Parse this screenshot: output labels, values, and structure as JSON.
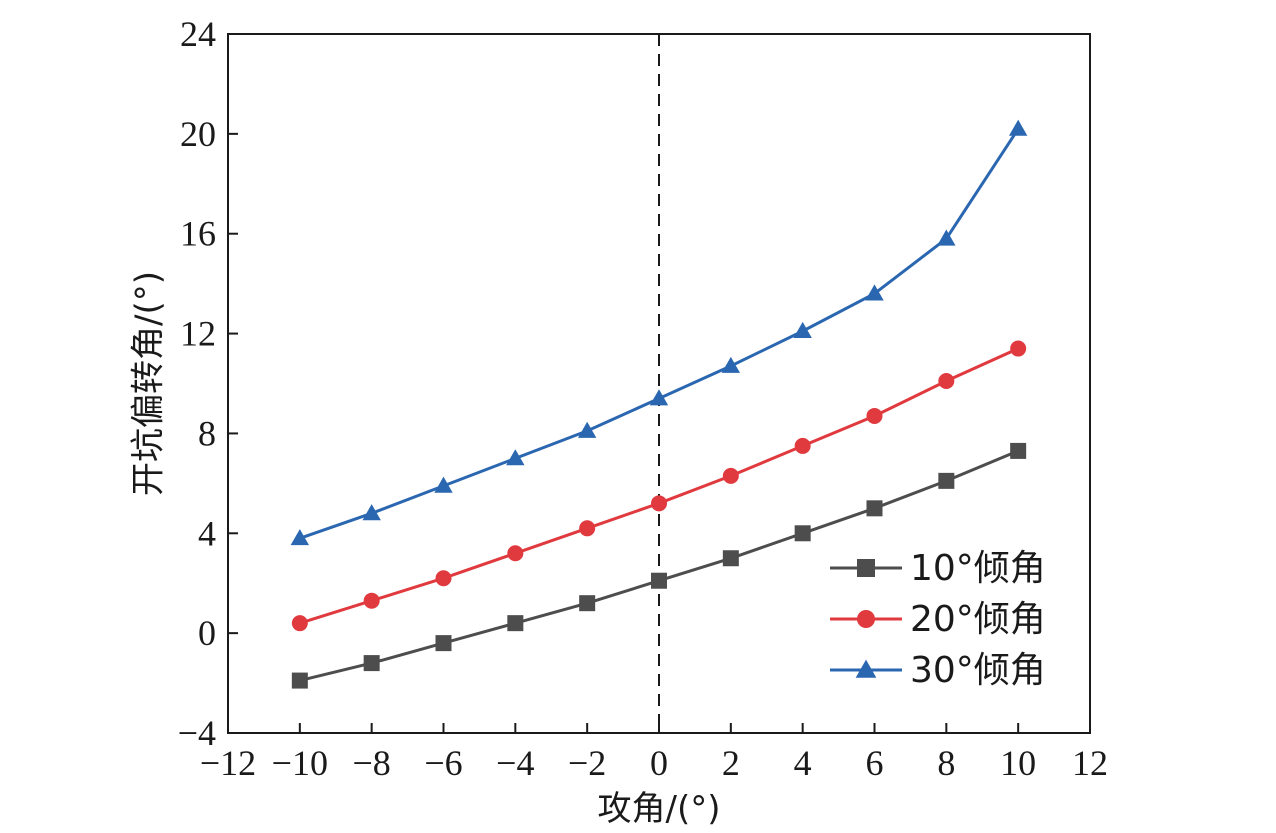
{
  "chart_data": {
    "type": "line",
    "title": "",
    "xlabel": "攻角/(°)",
    "ylabel": "开坑偏转角/(°)",
    "xlim": [
      -12,
      12
    ],
    "ylim": [
      -4,
      24
    ],
    "xticks": [
      -12,
      -10,
      -8,
      -6,
      -4,
      -2,
      0,
      2,
      4,
      6,
      8,
      10,
      12
    ],
    "yticks": [
      -4,
      0,
      4,
      8,
      12,
      16,
      20,
      24
    ],
    "xtick_labels": [
      "−12",
      "−10",
      "−8",
      "−6",
      "−4",
      "−2",
      "0",
      "2",
      "4",
      "6",
      "8",
      "10",
      "12"
    ],
    "ytick_labels": [
      "−4",
      "0",
      "4",
      "8",
      "12",
      "16",
      "20",
      "24"
    ],
    "grid": false,
    "reference_line": {
      "axis": "x",
      "value": 0,
      "style": "dashed"
    },
    "legend": {
      "position": "bottom-right"
    },
    "x": [
      -10,
      -8,
      -6,
      -4,
      -2,
      0,
      2,
      4,
      6,
      8,
      10
    ],
    "series": [
      {
        "name": "10°倾角",
        "color": "#4d4d4d",
        "marker": "square",
        "values": [
          -1.9,
          -1.2,
          -0.4,
          0.4,
          1.2,
          2.1,
          3.0,
          4.0,
          5.0,
          6.1,
          7.3
        ]
      },
      {
        "name": "20°倾角",
        "color": "#e0393e",
        "marker": "circle",
        "values": [
          0.4,
          1.3,
          2.2,
          3.2,
          4.2,
          5.2,
          6.3,
          7.5,
          8.7,
          10.1,
          11.4
        ]
      },
      {
        "name": "30°倾角",
        "color": "#2b67b1",
        "marker": "triangle",
        "values": [
          3.8,
          4.8,
          5.9,
          7.0,
          8.1,
          9.4,
          10.7,
          12.1,
          13.6,
          15.8,
          20.2
        ]
      }
    ]
  }
}
